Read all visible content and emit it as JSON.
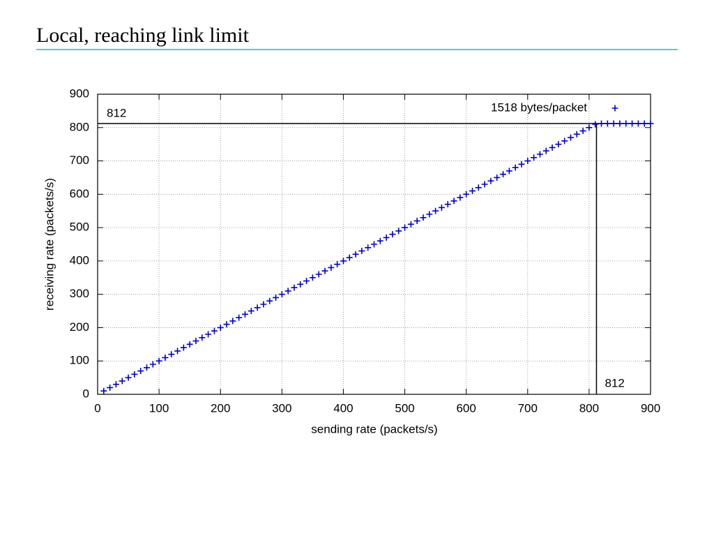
{
  "slide_title": "Local, reaching link limit",
  "chart_data": {
    "type": "scatter",
    "xlabel": "sending rate (packets/s)",
    "ylabel": "receiving rate (packets/s)",
    "xlim": [
      0,
      900
    ],
    "ylim": [
      0,
      900
    ],
    "xticks": [
      0,
      100,
      200,
      300,
      400,
      500,
      600,
      700,
      800,
      900
    ],
    "yticks": [
      0,
      100,
      200,
      300,
      400,
      500,
      600,
      700,
      800,
      900
    ],
    "grid": true,
    "legend": "upper right",
    "series": [
      {
        "name": "1518 bytes/packet",
        "color": "#0000cc",
        "x": [
          10,
          20,
          30,
          40,
          50,
          60,
          70,
          80,
          90,
          100,
          110,
          120,
          130,
          140,
          150,
          160,
          170,
          180,
          190,
          200,
          210,
          220,
          230,
          240,
          250,
          260,
          270,
          280,
          290,
          300,
          310,
          320,
          330,
          340,
          350,
          360,
          370,
          380,
          390,
          400,
          410,
          420,
          430,
          440,
          450,
          460,
          470,
          480,
          490,
          500,
          510,
          520,
          530,
          540,
          550,
          560,
          570,
          580,
          590,
          600,
          610,
          620,
          630,
          640,
          650,
          660,
          670,
          680,
          690,
          700,
          710,
          720,
          730,
          740,
          750,
          760,
          770,
          780,
          790,
          800,
          810,
          820,
          830,
          840,
          850,
          860,
          870,
          880,
          890,
          900
        ],
        "values": [
          10,
          20,
          30,
          40,
          50,
          60,
          70,
          80,
          90,
          100,
          110,
          120,
          130,
          140,
          150,
          160,
          170,
          180,
          190,
          200,
          210,
          220,
          230,
          240,
          250,
          260,
          270,
          280,
          290,
          300,
          310,
          320,
          330,
          340,
          350,
          360,
          370,
          380,
          390,
          400,
          410,
          420,
          430,
          440,
          450,
          460,
          470,
          480,
          490,
          500,
          510,
          520,
          530,
          540,
          550,
          560,
          570,
          580,
          590,
          600,
          610,
          620,
          630,
          640,
          650,
          660,
          670,
          680,
          690,
          700,
          710,
          720,
          730,
          740,
          750,
          760,
          770,
          780,
          790,
          800,
          810,
          812,
          812,
          812,
          812,
          812,
          812,
          812,
          812,
          812
        ]
      }
    ],
    "reference_lines": [
      {
        "axis": "y",
        "value": 812,
        "label": "812"
      },
      {
        "axis": "x",
        "value": 812,
        "label": "812"
      }
    ]
  }
}
